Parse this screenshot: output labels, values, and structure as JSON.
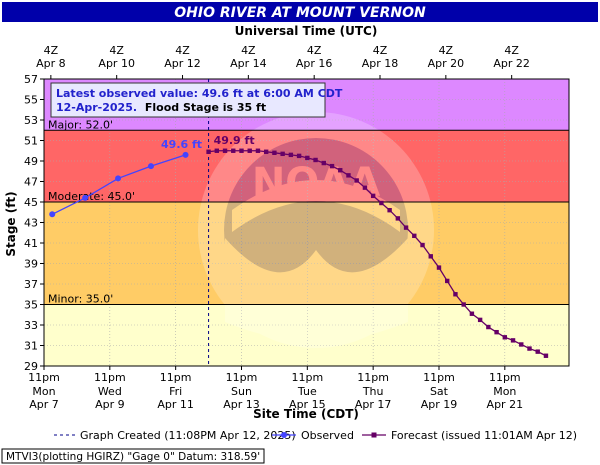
{
  "chart_data": {
    "type": "line",
    "title": "OHIO RIVER AT MOUNT VERNON",
    "top_axis_label": "Universal Time (UTC)",
    "top_ticks": [
      {
        "hour": "4Z",
        "date": "Apr  8"
      },
      {
        "hour": "4Z",
        "date": "Apr 10"
      },
      {
        "hour": "4Z",
        "date": "Apr 12"
      },
      {
        "hour": "4Z",
        "date": "Apr 14"
      },
      {
        "hour": "4Z",
        "date": "Apr 16"
      },
      {
        "hour": "4Z",
        "date": "Apr 18"
      },
      {
        "hour": "4Z",
        "date": "Apr 20"
      },
      {
        "hour": "4Z",
        "date": "Apr 22"
      }
    ],
    "xlabel": "Site Time (CDT)",
    "bottom_ticks": [
      {
        "time": "11pm",
        "day": "Mon",
        "date": "Apr 7"
      },
      {
        "time": "11pm",
        "day": "Wed",
        "date": "Apr 9"
      },
      {
        "time": "11pm",
        "day": "Fri",
        "date": "Apr 11"
      },
      {
        "time": "11pm",
        "day": "Sun",
        "date": "Apr 13"
      },
      {
        "time": "11pm",
        "day": "Tue",
        "date": "Apr 15"
      },
      {
        "time": "11pm",
        "day": "Thu",
        "date": "Apr 17"
      },
      {
        "time": "11pm",
        "day": "Sat",
        "date": "Apr 19"
      },
      {
        "time": "11pm",
        "day": "Mon",
        "date": "Apr 21"
      }
    ],
    "ylabel": "Stage (ft)",
    "ylim": [
      29,
      57
    ],
    "yticks": [
      29,
      31,
      33,
      35,
      37,
      39,
      41,
      43,
      45,
      47,
      49,
      51,
      53,
      55,
      57
    ],
    "x_unit": "days since Apr 7 11pm CDT",
    "xlim": [
      0,
      15.95
    ],
    "flood_zones": [
      {
        "name": "Minor",
        "label": "Minor: 35.0'",
        "from": 35,
        "to": 45,
        "color": "#ffff99"
      },
      {
        "name": "Moderate",
        "label": "Moderate: 45.0'",
        "from": 45,
        "to": 52,
        "color": "#ffc266"
      },
      {
        "name": "Major",
        "label": "Major: 52.0'",
        "from": 52,
        "to": 57,
        "color": "#ff6f6f"
      }
    ],
    "record_zone": {
      "from": 52,
      "to": 57,
      "color": "#dd88ff"
    },
    "major_zone_color": "#ff7070",
    "info_box": {
      "line1": "Latest observed value: 49.6 ft at 6:00 AM CDT",
      "line2_date": "12-Apr-2025.",
      "line2_rest": "Flood Stage is 35 ft"
    },
    "observed_label": "49.6 ft",
    "forecast_label": "49.9 ft",
    "graph_created_x": 5.0,
    "series": [
      {
        "name": "Observed",
        "color": "#4444ff",
        "points": [
          [
            0.25,
            43.8
          ],
          [
            1.25,
            45.4
          ],
          [
            2.25,
            47.3
          ],
          [
            3.25,
            48.5
          ],
          [
            4.3,
            49.6
          ]
        ]
      },
      {
        "name": "Forecast",
        "color": "#660066",
        "points": [
          [
            5.0,
            49.9
          ],
          [
            5.25,
            50.0
          ],
          [
            5.5,
            50.0
          ],
          [
            5.75,
            50.0
          ],
          [
            6.0,
            50.0
          ],
          [
            6.25,
            50.0
          ],
          [
            6.5,
            50.0
          ],
          [
            6.75,
            49.9
          ],
          [
            7.0,
            49.8
          ],
          [
            7.25,
            49.7
          ],
          [
            7.5,
            49.6
          ],
          [
            7.75,
            49.5
          ],
          [
            8.0,
            49.3
          ],
          [
            8.25,
            49.1
          ],
          [
            8.5,
            48.8
          ],
          [
            8.75,
            48.5
          ],
          [
            9.0,
            48.1
          ],
          [
            9.25,
            47.6
          ],
          [
            9.5,
            47.1
          ],
          [
            9.75,
            46.4
          ],
          [
            10.0,
            45.6
          ],
          [
            10.25,
            44.9
          ],
          [
            10.5,
            44.2
          ],
          [
            10.75,
            43.4
          ],
          [
            11.0,
            42.5
          ],
          [
            11.25,
            41.7
          ],
          [
            11.5,
            40.8
          ],
          [
            11.75,
            39.7
          ],
          [
            12.0,
            38.6
          ],
          [
            12.25,
            37.3
          ],
          [
            12.5,
            36.0
          ],
          [
            12.75,
            35.0
          ],
          [
            13.0,
            34.1
          ],
          [
            13.25,
            33.5
          ],
          [
            13.5,
            32.8
          ],
          [
            13.75,
            32.3
          ],
          [
            14.0,
            31.8
          ],
          [
            14.25,
            31.5
          ],
          [
            14.5,
            31.1
          ],
          [
            14.75,
            30.7
          ],
          [
            15.0,
            30.4
          ],
          [
            15.25,
            30.0
          ]
        ]
      }
    ],
    "legend": {
      "graph_created": "Graph Created (11:08PM Apr 12, 2025)",
      "observed": "Observed",
      "forecast": "Forecast (issued 11:01AM Apr 12)"
    },
    "footer": "MTVI3(plotting HGIRZ) \"Gage 0\" Datum: 318.59'",
    "colors": {
      "title_bg": "#0000aa",
      "frame_bg": "#ffffff",
      "plot_border": "#000000"
    }
  }
}
